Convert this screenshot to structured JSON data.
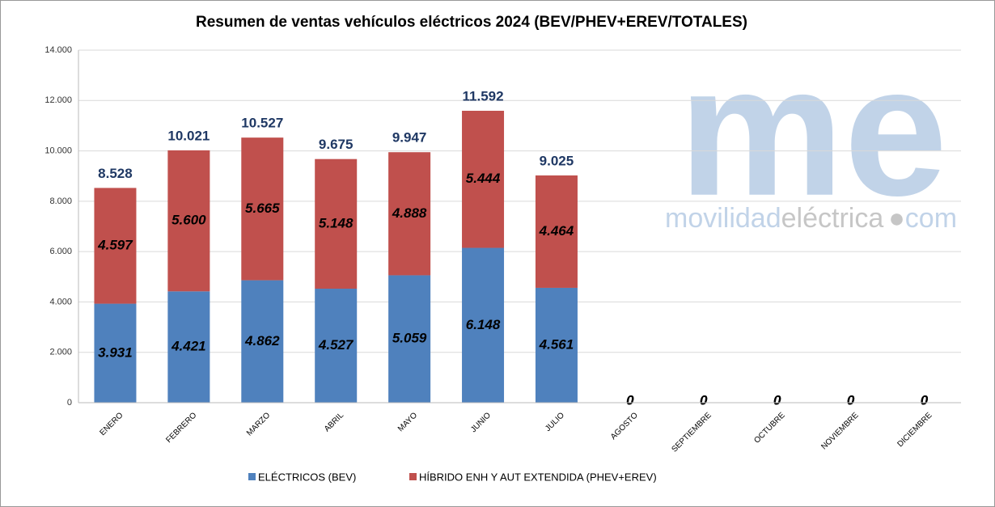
{
  "chart_data": {
    "type": "stacked_bar",
    "title": "Resumen de ventas vehículos eléctricos 2024 (BEV/PHEV+EREV/TOTALES)",
    "categories": [
      "ENERO",
      "FEBRERO",
      "MARZO",
      "ABRIL",
      "MAYO",
      "JUNIO",
      "JULIO",
      "AGOSTO",
      "SEPTIEMBRE",
      "OCTUBRE",
      "NOVIEMBRE",
      "DICIEMBRE"
    ],
    "series": [
      {
        "name": "ELÉCTRICOS (BEV)",
        "color": "#4f81bd",
        "values": [
          3931,
          4421,
          4862,
          4527,
          5059,
          6148,
          4561,
          0,
          0,
          0,
          0,
          0
        ],
        "value_labels": [
          "3.931",
          "4.421",
          "4.862",
          "4.527",
          "5.059",
          "6.148",
          "4.561",
          "0",
          "0",
          "0",
          "0",
          "0"
        ]
      },
      {
        "name": "HÍBRIDO ENH Y AUT EXTENDIDA (PHEV+EREV)",
        "color": "#c0504d",
        "values": [
          4597,
          5600,
          5665,
          5148,
          4888,
          5444,
          4464,
          0,
          0,
          0,
          0,
          0
        ],
        "value_labels": [
          "4.597",
          "5.600",
          "5.665",
          "5.148",
          "4.888",
          "5.444",
          "4.464",
          "0",
          "0",
          "0",
          "0",
          "0"
        ]
      }
    ],
    "totals": {
      "values": [
        8528,
        10021,
        10527,
        9675,
        9947,
        11592,
        9025,
        null,
        null,
        null,
        null,
        null
      ],
      "value_labels": [
        "8.528",
        "10.021",
        "10.527",
        "9.675",
        "9.947",
        "11.592",
        "9.025",
        null,
        null,
        null,
        null,
        null
      ]
    },
    "ylim": [
      0,
      14000
    ],
    "yticks": [
      0,
      {
        "value": 2000,
        "label": "2.000"
      },
      {
        "value": 4000,
        "label": "4.000"
      },
      {
        "value": 6000,
        "label": "6.000"
      },
      {
        "value": 8000,
        "label": "8.000"
      },
      {
        "value": 10000,
        "label": "10.000"
      },
      {
        "value": 12000,
        "label": "12.000"
      },
      {
        "value": 14000,
        "label": "14.000"
      }
    ],
    "grid": true,
    "legend": "bottom",
    "watermark": {
      "logo": "me",
      "parts": [
        "movilidad",
        "eléctrica",
        "com"
      ]
    }
  }
}
